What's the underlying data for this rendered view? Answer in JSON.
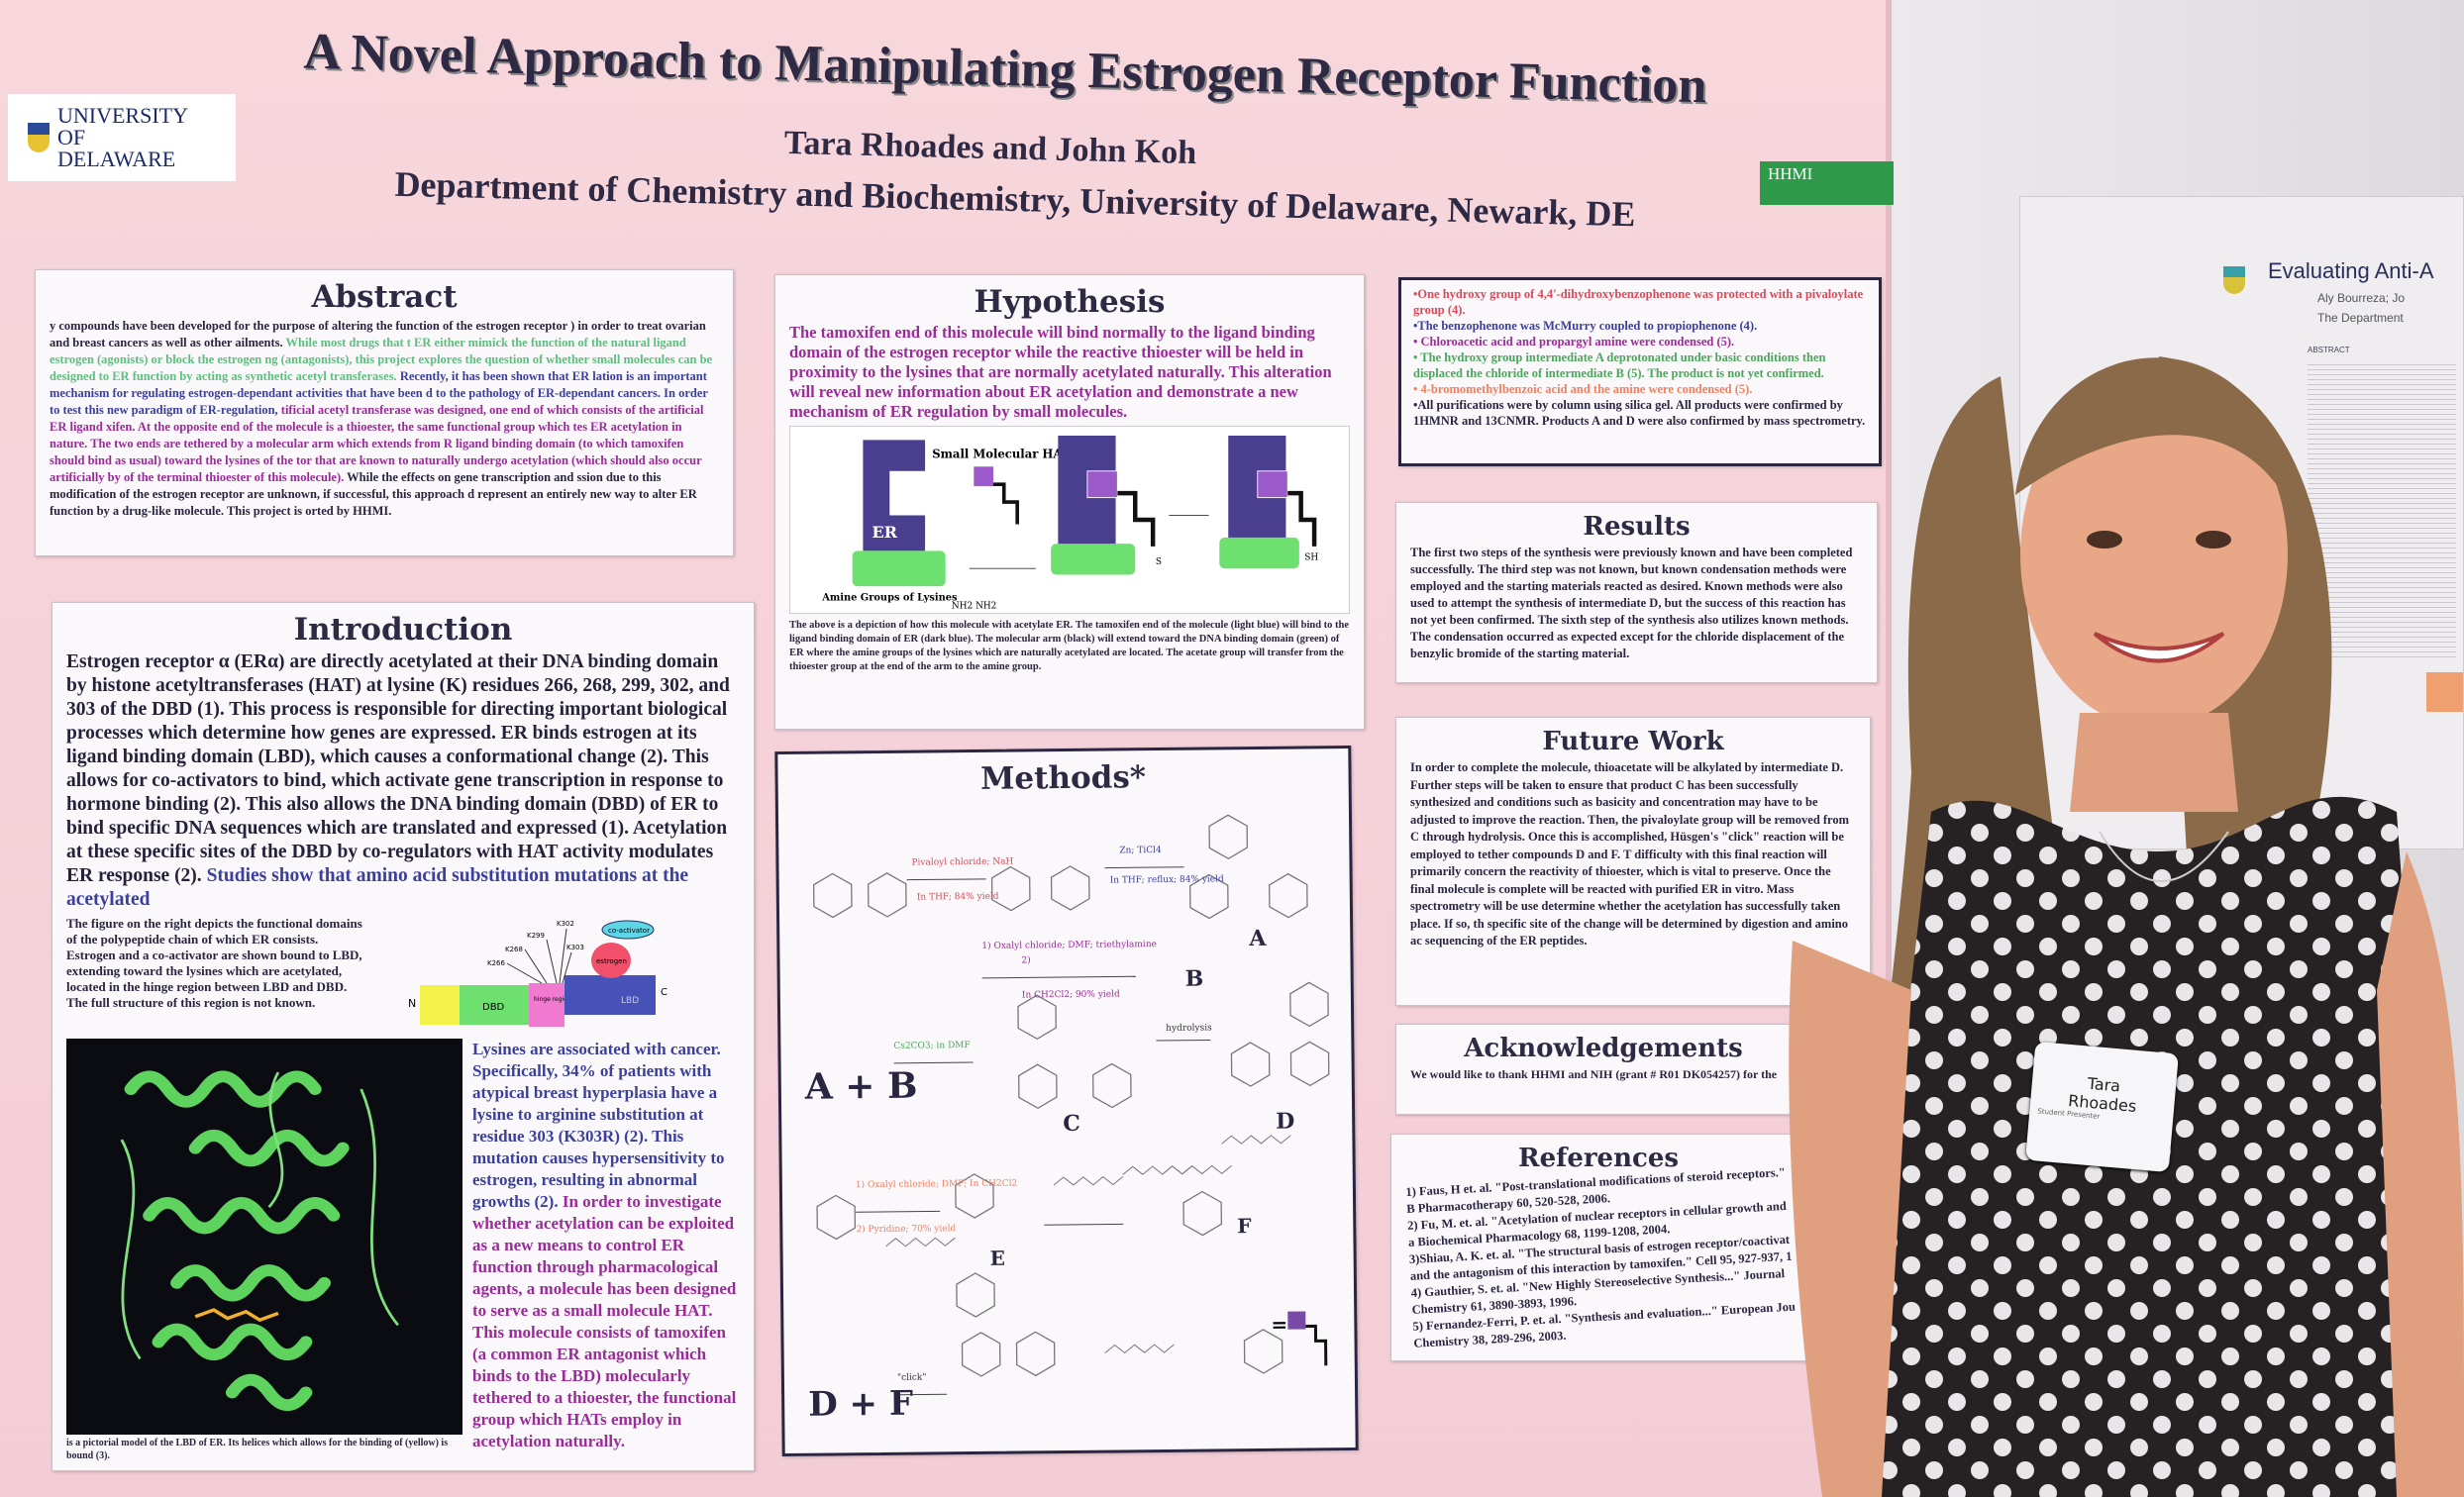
{
  "poster": {
    "title": "A Novel Approach to Manipulating Estrogen Receptor Function",
    "authors": "Tara Rhoades and John Koh",
    "department": "Department of Chemistry and Biochemistry, University of Delaware, Newark, DE",
    "logo_ud": "UNIVERSITY OF DELAWARE",
    "logo_hhmi": "HHMI",
    "abstract": {
      "heading": "Abstract",
      "seg1": "y compounds have been developed for the purpose of altering the function of the estrogen receptor ) in order to treat ovarian and breast cancers as well as other ailments.",
      "seg2": " While most drugs that t ER either mimick the function of the natural ligand estrogen (agonists) or block the estrogen ng (antagonists), this project explores the question of whether small molecules can be designed to ER function by acting as synthetic acetyl transferases.",
      "seg3": " Recently, it has been shown that ER lation is an important mechanism for regulating estrogen-dependant activities that have been d to the pathology of ER-dependant cancers. In order to test this new paradigm of ER-regulation,",
      "seg4": " tificial acetyl transferase was designed, one end of which consists of the artificial ER ligand xifen. At the opposite end of the molecule is a thioester, the same functional group which tes ER acetylation in nature. The two ends are tethered by a molecular arm which extends from R ligand binding domain (to which tamoxifen should bind as usual) toward the lysines of the tor that are known to naturally undergo acetylation (which should also occur artificially by of the terminal thioester of this molecule).",
      "seg5": " While the effects on gene transcription and ssion due to this modification of the estrogen receptor are unknown, if successful, this approach d represent an entirely new way to alter ER function by a drug-like molecule. This project is orted by HHMI."
    },
    "introduction": {
      "heading": "Introduction",
      "para1": "Estrogen receptor α (ERα) are directly acetylated at their DNA binding domain by histone acetyltransferases (HAT) at lysine (K) residues 266, 268, 299, 302, and 303 of the DBD (1). This process is responsible for directing important biological processes which determine how genes are expressed. ER binds estrogen at its ligand binding domain (LBD), which causes a conformational change (2). This allows for co-activators to bind, which activate gene transcription in response to hormone binding (2). This also allows the DNA binding domain (DBD) of ER to bind specific DNA sequences which are translated and expressed (1). Acetylation at these specific sites of the DBD by co-regulators with HAT activity modulates ER response (2).",
      "para1_blue": " Studies show that amino acid substitution mutations at the acetylated",
      "figure_caption": "The figure on the right depicts the functional domains of the polypeptide chain of which ER consists. Estrogen and a co-activator are shown bound to LBD, extending toward the lysines which are acetylated, located in the hinge region between LBD and DBD. The full structure of this region is not known.",
      "domain_labels": {
        "n": "N",
        "c": "C",
        "dbd": "DBD",
        "hinge": "hinge region",
        "lbd": "LBD",
        "estrogen": "estrogen",
        "coactivator": "co-activator",
        "k266": "K266",
        "k268": "K268",
        "k299": "K299",
        "k302": "K302",
        "k303": "K303"
      },
      "para2_blue": "Lysines are associated with cancer. Specifically, 34% of patients with atypical breast hyperplasia have a lysine to arginine substitution at residue 303 (K303R) (2). This mutation causes hypersensitivity to estrogen, resulting in abnormal growths (2).",
      "para2_purple": " In order to investigate whether acetylation can be exploited as a new means to control ER function through pharmacological agents, a molecule has been designed to serve as a small molecule HAT. This molecule consists of tamoxifen (a common ER antagonist which binds to the LBD) molecularly tethered to a thioester, the functional group which HATs employ in acetylation naturally.",
      "protein_caption": "is a pictorial model of the LBD of ER. Its helices which allows for the binding of (yellow) is bound (3)."
    },
    "hypothesis": {
      "heading": "Hypothesis",
      "text": "The tamoxifen end of this molecule will bind normally to the ligand binding domain of the estrogen receptor while the reactive thioester will be held in proximity to the lysines that are normally acetylated naturally. This alteration will reveal new information about ER acetylation and demonstrate a new mechanism of ER regulation by small molecules.",
      "fig_hat": "Small Molecular HAT",
      "fig_er": "ER",
      "fig_amine": "Amine Groups of Lysines",
      "fig_nh2": "NH2 NH2",
      "fig_s": "S",
      "fig_sh": "SH",
      "caption": "The above is a depiction of how this molecule with acetylate ER. The tamoxifen end of the molecule (light blue) will bind to the ligand binding domain of ER (dark blue). The molecular arm (black) will extend toward the DNA binding domain (green) of ER where the amine groups of the lysines which are naturally acetylated are located. The acetate group will transfer from the thioester group at the end of the arm to the amine group."
    },
    "methods": {
      "heading": "Methods*",
      "reagents": [
        "Pivaloyl chloride; NaH",
        "In THF; 84% yield",
        "Zn; TiCl4",
        "In THF; reflux; 84% yield",
        "1) Oxalyl chloride; DMF; triethylamine",
        "2)",
        "In CH2Cl2; 90% yield",
        "Cs2CO3; in DMF",
        "hydrolysis",
        "1) Oxalyl chloride; DMF; In CH2Cl2",
        "2) Pyridine; 70% yield",
        "\"click\""
      ],
      "labels": {
        "a": "A",
        "b": "B",
        "c": "C",
        "d": "D",
        "e": "E",
        "f": "F",
        "ab": "A + B",
        "df": "D + F"
      }
    },
    "method_notes": [
      {
        "text": "•One hydroxy group of 4,4'-dihydroxybenzophenone was protected with a pivaloylate group (4).",
        "color": "#d94a5a"
      },
      {
        "text": "•The benzophenone was McMurry coupled to propiophenone (4).",
        "color": "#3b3f9e"
      },
      {
        "text": "• Chloroacetic acid and propargyl amine were condensed (5).",
        "color": "#9b2a9a"
      },
      {
        "text": "• The hydroxy group intermediate A deprotonated under basic conditions then displaced the chloride of intermediate B (5). The product is not yet confirmed.",
        "color": "#4aa65a"
      },
      {
        "text": "• 4-bromomethylbenzoic acid and the amine were condensed (5).",
        "color": "#f08060"
      },
      {
        "text": "•All purifications were by column using silica gel. All products were confirmed by 1HMNR and 13CNMR. Products A and D were also confirmed by mass spectrometry.",
        "color": "#2a2540"
      }
    ],
    "results": {
      "heading": "Results",
      "text": "The first two steps of the synthesis were previously known and have been completed successfully. The third step was not known, but known condensation methods were employed and the starting materials reacted as desired. Known methods were also used to attempt the synthesis of intermediate D, but the success of this reaction has not yet been confirmed. The sixth step of the synthesis also utilizes known methods. The condensation occurred as expected except for the chloride displacement of the benzylic bromide of the starting material."
    },
    "future_work": {
      "heading": "Future Work",
      "text": "In order to complete the molecule, thioacetate will be alkylated by intermediate D. Further steps will be taken to ensure that product C has been successfully synthesized and conditions such as basicity and concentration may have to be adjusted to improve the reaction. Then, the pivaloylate group will be removed from C through hydrolysis. Once this is accomplished, Hüsgen's \"click\" reaction will be employed to tether compounds D and F. T difficulty with this final reaction will primarily concern the reactivity of thioester, which is vital to preserve. Once the final molecule is complete will be reacted with purified ER in vitro. Mass spectrometry will be use determine whether the acetylation has successfully taken place. If so, th specific site of the change will be determined by digestion and amino ac sequencing of the ER peptides."
    },
    "acknowledgements": {
      "heading": "Acknowledgements",
      "text": "We would like to thank HHMI and NIH (grant # R01 DK054257) for the"
    },
    "references": {
      "heading": "References",
      "items": [
        "1) Faus, H et. al. \"Post-translational modifications of steroid receptors.\" B Pharmacotherapy 60, 520-528, 2006.",
        "2) Fu, M. et. al. \"Acetylation of nuclear receptors in cellular growth and a Biochemical Pharmacology 68, 1199-1208, 2004.",
        "3)Shiau, A. K. et. al. \"The structural basis of estrogen receptor/coactivat and the antagonism of this interaction by tamoxifen.\" Cell 95, 927-937, 1",
        "4) Gauthier, S. et. al. \"New Highly Stereoselective Synthesis...\" Journal Chemistry 61, 3890-3893, 1996.",
        "5) Fernandez-Ferri, P. et. al. \"Synthesis and evaluation...\" European Jou Chemistry 38, 289-296, 2003."
      ]
    }
  },
  "background_poster": {
    "title": "Evaluating Anti-A",
    "authors": "Aly Bourreza; Jo",
    "dept": "The Department",
    "section": "ABSTRACT"
  },
  "name_badge": {
    "name_line1": "Tara",
    "name_line2": "Rhoades",
    "role": "Student Presenter"
  },
  "colors": {
    "poster_bg": "#f5d2da",
    "heading": "#2e2a44",
    "er_blue": "#4a3f8f",
    "dbd_green": "#6ee070",
    "hat_purple": "#9b59c9",
    "hhmi_green": "#2f9a4a"
  }
}
